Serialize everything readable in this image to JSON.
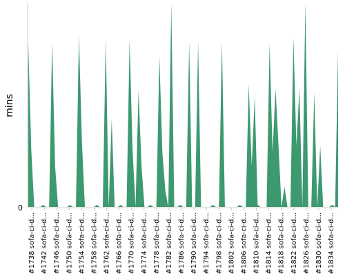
{
  "chart_data": {
    "type": "area",
    "ylabel": "mins",
    "xlabel": "",
    "title": "",
    "y_ticks": [
      "0"
    ],
    "ylim": [
      0,
      100
    ],
    "grid": false,
    "series_color": "#3d9970",
    "x_tick_labels": [
      "#1738 sofa-ci-d...",
      "#1742 sofa-ci-d...",
      "#1746 sofa-ci-d...",
      "#1750 sofa-ci-d...",
      "#1754 sofa-ci-d...",
      "#1758 sofa-ci-d...",
      "#1762 sofa-ci-d...",
      "#1766 sofa-ci-d...",
      "#1770 sofa-ci-d...",
      "#1774 sofa-ci-d...",
      "#1778 sofa-ci-d...",
      "#1782 sofa-ci-d...",
      "#1786 sofa-ci-d...",
      "#1790 sofa-ci-d...",
      "#1794 sofa-ci-d...",
      "#1798 sofa-ci-d...",
      "#1802 sofa-ci-d...",
      "#1806 sofa-ci-d...",
      "#1810 sofa-ci-d...",
      "#1814 sofa-ci-d...",
      "#1818 sofa-ci-d...",
      "#1822 sofa-ci-d...",
      "#1826 sofa-ci-d...",
      "#1830 sofa-ci-d...",
      "#1834 sofa-ci-d..."
    ],
    "values": [
      80,
      28,
      0,
      0,
      0,
      1,
      0,
      0,
      81,
      20,
      0,
      0,
      0,
      0,
      1,
      0,
      0,
      84,
      32,
      0,
      0,
      0,
      0,
      1,
      0,
      0,
      82,
      0,
      43,
      0,
      0,
      1,
      0,
      0,
      82,
      28,
      0,
      57,
      20,
      0,
      0,
      1,
      0,
      0,
      74,
      27,
      8,
      0,
      100,
      0,
      0,
      1,
      0,
      0,
      81,
      0,
      0,
      81,
      0,
      0,
      0,
      0,
      1,
      0,
      0,
      81,
      0,
      0,
      0,
      0,
      0,
      1,
      0,
      0,
      60,
      20,
      54,
      1,
      0,
      0,
      0,
      80,
      27,
      58,
      30,
      0,
      10,
      0,
      0,
      83,
      30,
      58,
      0,
      100,
      0,
      0,
      56,
      0,
      30,
      0,
      0,
      0,
      1,
      0,
      77
    ]
  }
}
